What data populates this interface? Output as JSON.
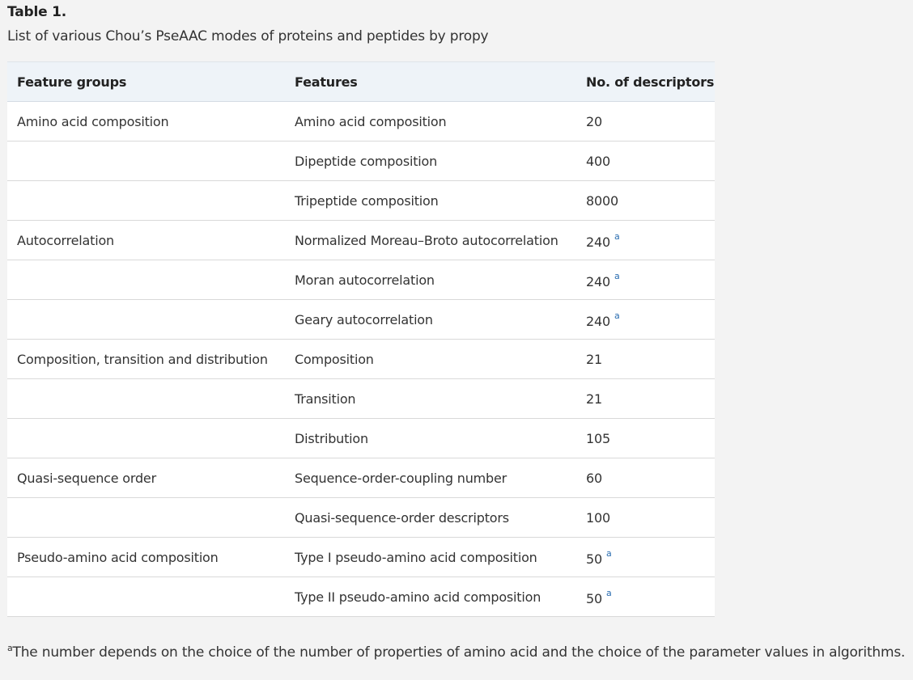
{
  "table_label": "Table 1.",
  "caption": "List of various Chou’s PseAAC modes of proteins and peptides by propy",
  "headers": [
    "Feature groups",
    "Features",
    "No. of descriptors"
  ],
  "rows": [
    {
      "group": "Amino acid composition",
      "feature": "Amino acid composition",
      "count": "20",
      "note": ""
    },
    {
      "group": "",
      "feature": "Dipeptide composition",
      "count": "400",
      "note": ""
    },
    {
      "group": "",
      "feature": "Tripeptide composition",
      "count": "8000",
      "note": ""
    },
    {
      "group": "Autocorrelation",
      "feature": "Normalized Moreau–Broto autocorrelation",
      "count": "240",
      "note": "a"
    },
    {
      "group": "",
      "feature": "Moran autocorrelation",
      "count": "240",
      "note": "a"
    },
    {
      "group": "",
      "feature": "Geary autocorrelation",
      "count": "240",
      "note": "a"
    },
    {
      "group": "Composition, transition and distribution",
      "feature": "Composition",
      "count": "21",
      "note": ""
    },
    {
      "group": "",
      "feature": "Transition",
      "count": "21",
      "note": ""
    },
    {
      "group": "",
      "feature": "Distribution",
      "count": "105",
      "note": ""
    },
    {
      "group": "Quasi-sequence order",
      "feature": "Sequence-order-coupling number",
      "count": "60",
      "note": ""
    },
    {
      "group": "",
      "feature": "Quasi-sequence-order descriptors",
      "count": "100",
      "note": ""
    },
    {
      "group": "Pseudo-amino acid composition",
      "feature": "Type I pseudo-amino acid composition",
      "count": "50",
      "note": "a"
    },
    {
      "group": "",
      "feature": "Type II pseudo-amino acid composition",
      "count": "50",
      "note": "a"
    }
  ],
  "footnote": {
    "marker": "a",
    "text": "The number depends on the choice of the number of properties of amino acid and the choice of the parameter values in algorithms."
  },
  "colors": {
    "header_bg": "#eef3f8",
    "page_bg": "#f3f3f3",
    "link": "#2a6db0"
  }
}
